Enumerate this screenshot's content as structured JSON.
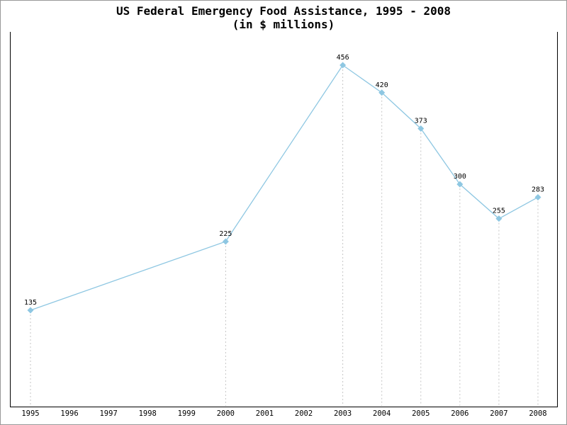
{
  "header": {
    "title": "US Federal Emergency Food Assistance, 1995 - 2008",
    "subtitle": "(in $ millions)"
  },
  "chart_data": {
    "type": "line",
    "title": "US Federal Emergency Food Assistance, 1995 - 2008",
    "subtitle": "(in $ millions)",
    "x": [
      1995,
      2000,
      2003,
      2004,
      2005,
      2006,
      2007,
      2008
    ],
    "values": [
      135,
      225,
      456,
      420,
      373,
      300,
      255,
      283
    ],
    "x_ticks": [
      "1995",
      "1996",
      "1997",
      "1998",
      "1999",
      "2000",
      "2001",
      "2002",
      "2003",
      "2004",
      "2005",
      "2006",
      "2007",
      "2008"
    ],
    "xlabel": "",
    "ylabel": "",
    "xlim": [
      1994.5,
      2008.5
    ],
    "ylim": [
      10,
      500
    ],
    "grid": "none",
    "drop_lines": "dashed vertical line from each data point to x-axis",
    "legend": "none",
    "marker": "diamond",
    "line_color": "#8ec7e2",
    "marker_color": "#8ec7e2",
    "drop_line_color": "#c6c6c6",
    "point_label_color": "#000000",
    "axis_color": "#000000"
  }
}
